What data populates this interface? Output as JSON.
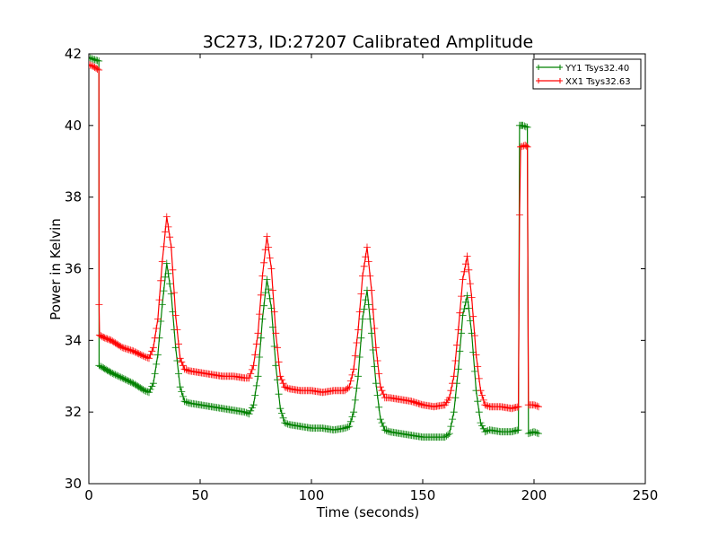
{
  "chart_data": {
    "type": "line",
    "title": "3C273, ID:27207 Calibrated Amplitude",
    "xlabel": "Time (seconds)",
    "ylabel": "Power in Kelvin",
    "xlim": [
      0,
      250
    ],
    "ylim": [
      30,
      42
    ],
    "xticks": [
      0,
      50,
      100,
      150,
      200,
      250
    ],
    "yticks": [
      30,
      32,
      34,
      36,
      38,
      40,
      42
    ],
    "grid": false,
    "legend_position": "top-right",
    "colors": {
      "YY1 Tsys32.40": "#008000",
      "XX1 Tsys32.63": "#ff0000"
    },
    "series": [
      {
        "name": "YY1 Tsys32.40",
        "color": "#008000",
        "points": [
          [
            0,
            41.9
          ],
          [
            2,
            41.85
          ],
          [
            4.5,
            41.8
          ],
          [
            4.6,
            33.3
          ],
          [
            6,
            33.25
          ],
          [
            10,
            33.1
          ],
          [
            15,
            32.95
          ],
          [
            20,
            32.8
          ],
          [
            25,
            32.6
          ],
          [
            27,
            32.55
          ],
          [
            29,
            32.8
          ],
          [
            31,
            33.6
          ],
          [
            33,
            35.0
          ],
          [
            35,
            36.15
          ],
          [
            37,
            35.3
          ],
          [
            39,
            33.8
          ],
          [
            41,
            32.7
          ],
          [
            43,
            32.3
          ],
          [
            45,
            32.25
          ],
          [
            50,
            32.2
          ],
          [
            55,
            32.15
          ],
          [
            60,
            32.1
          ],
          [
            65,
            32.05
          ],
          [
            70,
            32.0
          ],
          [
            72,
            31.95
          ],
          [
            74,
            32.2
          ],
          [
            76,
            33.0
          ],
          [
            78,
            34.6
          ],
          [
            80,
            35.7
          ],
          [
            82,
            34.9
          ],
          [
            84,
            33.3
          ],
          [
            86,
            32.1
          ],
          [
            88,
            31.7
          ],
          [
            90,
            31.65
          ],
          [
            95,
            31.6
          ],
          [
            100,
            31.55
          ],
          [
            105,
            31.55
          ],
          [
            110,
            31.5
          ],
          [
            115,
            31.55
          ],
          [
            117,
            31.6
          ],
          [
            119,
            32.0
          ],
          [
            121,
            33.0
          ],
          [
            123,
            34.6
          ],
          [
            125,
            35.4
          ],
          [
            127,
            34.2
          ],
          [
            129,
            32.8
          ],
          [
            131,
            31.8
          ],
          [
            133,
            31.5
          ],
          [
            135,
            31.45
          ],
          [
            140,
            31.4
          ],
          [
            145,
            31.35
          ],
          [
            150,
            31.3
          ],
          [
            155,
            31.3
          ],
          [
            160,
            31.3
          ],
          [
            162,
            31.4
          ],
          [
            164,
            32.0
          ],
          [
            166,
            33.2
          ],
          [
            168,
            34.7
          ],
          [
            170,
            35.25
          ],
          [
            172,
            34.2
          ],
          [
            174,
            32.6
          ],
          [
            176,
            31.7
          ],
          [
            178,
            31.45
          ],
          [
            180,
            31.5
          ],
          [
            185,
            31.45
          ],
          [
            190,
            31.45
          ],
          [
            193,
            31.5
          ],
          [
            193.5,
            40.0
          ],
          [
            195,
            40.0
          ],
          [
            197,
            39.95
          ],
          [
            197.5,
            31.4
          ],
          [
            200,
            31.45
          ],
          [
            202,
            31.4
          ]
        ]
      },
      {
        "name": "XX1 Tsys32.63",
        "color": "#ff0000",
        "points": [
          [
            0,
            41.7
          ],
          [
            2,
            41.65
          ],
          [
            4.5,
            41.55
          ],
          [
            4.6,
            35.0
          ],
          [
            4.8,
            34.15
          ],
          [
            6,
            34.1
          ],
          [
            10,
            34.0
          ],
          [
            15,
            33.8
          ],
          [
            20,
            33.7
          ],
          [
            25,
            33.55
          ],
          [
            27,
            33.5
          ],
          [
            29,
            33.8
          ],
          [
            31,
            34.6
          ],
          [
            33,
            36.2
          ],
          [
            35,
            37.45
          ],
          [
            37,
            36.6
          ],
          [
            39,
            34.7
          ],
          [
            41,
            33.5
          ],
          [
            43,
            33.2
          ],
          [
            45,
            33.15
          ],
          [
            50,
            33.1
          ],
          [
            55,
            33.05
          ],
          [
            60,
            33.0
          ],
          [
            65,
            33.0
          ],
          [
            70,
            32.95
          ],
          [
            72,
            32.95
          ],
          [
            74,
            33.3
          ],
          [
            76,
            34.2
          ],
          [
            78,
            35.8
          ],
          [
            80,
            36.9
          ],
          [
            82,
            36.0
          ],
          [
            84,
            34.2
          ],
          [
            86,
            33.0
          ],
          [
            88,
            32.7
          ],
          [
            90,
            32.65
          ],
          [
            95,
            32.6
          ],
          [
            100,
            32.6
          ],
          [
            105,
            32.55
          ],
          [
            110,
            32.6
          ],
          [
            115,
            32.6
          ],
          [
            117,
            32.7
          ],
          [
            119,
            33.2
          ],
          [
            121,
            34.3
          ],
          [
            123,
            35.8
          ],
          [
            125,
            36.6
          ],
          [
            127,
            35.4
          ],
          [
            129,
            33.8
          ],
          [
            131,
            32.7
          ],
          [
            133,
            32.4
          ],
          [
            135,
            32.4
          ],
          [
            140,
            32.35
          ],
          [
            145,
            32.3
          ],
          [
            150,
            32.2
          ],
          [
            155,
            32.15
          ],
          [
            160,
            32.2
          ],
          [
            162,
            32.4
          ],
          [
            164,
            33.0
          ],
          [
            166,
            34.3
          ],
          [
            168,
            35.7
          ],
          [
            170,
            36.35
          ],
          [
            172,
            35.2
          ],
          [
            174,
            33.6
          ],
          [
            176,
            32.6
          ],
          [
            178,
            32.2
          ],
          [
            180,
            32.15
          ],
          [
            185,
            32.15
          ],
          [
            190,
            32.1
          ],
          [
            193,
            32.15
          ],
          [
            193.5,
            37.5
          ],
          [
            194,
            39.4
          ],
          [
            196,
            39.45
          ],
          [
            197,
            39.4
          ],
          [
            197.5,
            32.2
          ],
          [
            200,
            32.2
          ],
          [
            202,
            32.15
          ]
        ]
      }
    ]
  }
}
